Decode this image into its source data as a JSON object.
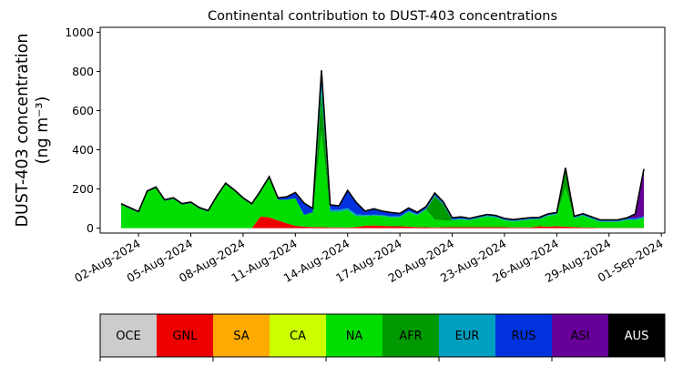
{
  "chart_data": {
    "type": "area",
    "stacked": true,
    "title": "Continental contribution to DUST-403 concentrations",
    "ylabel_line1": "DUST-403 concentration",
    "ylabel_line2": "(ng m⁻³)",
    "xlabel": "",
    "ylim": [
      -25,
      1025
    ],
    "xlim": [
      -1.2,
      31.2
    ],
    "yticks": [
      0,
      200,
      400,
      600,
      800,
      1000
    ],
    "yticklabels": [
      "0",
      "200",
      "400",
      "600",
      "800",
      "1000"
    ],
    "xticks": [
      1,
      4,
      7,
      10,
      13,
      16,
      19,
      22,
      25,
      28,
      31
    ],
    "xticklabels": [
      "02-Aug-2024",
      "05-Aug-2024",
      "08-Aug-2024",
      "11-Aug-2024",
      "14-Aug-2024",
      "17-Aug-2024",
      "20-Aug-2024",
      "23-Aug-2024",
      "26-Aug-2024",
      "29-Aug-2024",
      "01-Sep-2024"
    ],
    "x": [
      0.0,
      0.5,
      1.0,
      1.5,
      2.0,
      2.5,
      3.0,
      3.5,
      4.0,
      4.5,
      5.0,
      5.5,
      6.0,
      6.5,
      7.0,
      7.5,
      8.0,
      8.5,
      9.0,
      9.5,
      10.0,
      10.5,
      11.0,
      11.5,
      12.0,
      12.5,
      13.0,
      13.5,
      14.0,
      14.5,
      15.0,
      15.5,
      16.0,
      16.5,
      17.0,
      17.5,
      18.0,
      18.5,
      19.0,
      19.5,
      20.0,
      20.5,
      21.0,
      21.5,
      22.0,
      22.5,
      23.0,
      23.5,
      24.0,
      24.5,
      25.0,
      25.5,
      26.0,
      26.5,
      27.0,
      27.5,
      28.0,
      28.5,
      29.0,
      29.5,
      30.0
    ],
    "x_dates": [
      "01-Aug-2024 00:00",
      "01-Aug-2024 12:00",
      "02-Aug-2024 00:00",
      "02-Aug-2024 12:00",
      "03-Aug-2024 00:00",
      "03-Aug-2024 12:00",
      "04-Aug-2024 00:00",
      "04-Aug-2024 12:00",
      "05-Aug-2024 00:00",
      "05-Aug-2024 12:00",
      "06-Aug-2024 00:00",
      "06-Aug-2024 12:00",
      "07-Aug-2024 00:00",
      "07-Aug-2024 12:00",
      "08-Aug-2024 00:00",
      "08-Aug-2024 12:00",
      "09-Aug-2024 00:00",
      "09-Aug-2024 12:00",
      "10-Aug-2024 00:00",
      "10-Aug-2024 12:00",
      "11-Aug-2024 00:00",
      "11-Aug-2024 12:00",
      "12-Aug-2024 00:00",
      "12-Aug-2024 12:00",
      "13-Aug-2024 00:00",
      "13-Aug-2024 12:00",
      "14-Aug-2024 00:00",
      "14-Aug-2024 12:00",
      "15-Aug-2024 00:00",
      "15-Aug-2024 12:00",
      "16-Aug-2024 00:00",
      "16-Aug-2024 12:00",
      "17-Aug-2024 00:00",
      "17-Aug-2024 12:00",
      "18-Aug-2024 00:00",
      "18-Aug-2024 12:00",
      "19-Aug-2024 00:00",
      "19-Aug-2024 12:00",
      "20-Aug-2024 00:00",
      "20-Aug-2024 12:00",
      "21-Aug-2024 00:00",
      "21-Aug-2024 12:00",
      "22-Aug-2024 00:00",
      "22-Aug-2024 12:00",
      "23-Aug-2024 00:00",
      "23-Aug-2024 12:00",
      "24-Aug-2024 00:00",
      "24-Aug-2024 12:00",
      "25-Aug-2024 00:00",
      "25-Aug-2024 12:00",
      "26-Aug-2024 00:00",
      "26-Aug-2024 12:00",
      "27-Aug-2024 00:00",
      "27-Aug-2024 12:00",
      "28-Aug-2024 00:00",
      "28-Aug-2024 12:00",
      "29-Aug-2024 00:00",
      "29-Aug-2024 12:00",
      "30-Aug-2024 00:00",
      "30-Aug-2024 12:00",
      "31-Aug-2024 00:00"
    ],
    "series": [
      {
        "name": "OCE",
        "color": "#cccccc",
        "values": [
          0,
          0,
          0,
          0,
          0,
          0,
          0,
          0,
          0,
          0,
          0,
          0,
          0,
          0,
          0,
          0,
          0,
          0,
          0,
          0,
          0,
          0,
          0,
          0,
          0,
          0,
          0,
          0,
          0,
          0,
          0,
          0,
          0,
          0,
          0,
          0,
          0,
          0,
          0,
          0,
          0,
          0,
          0,
          0,
          0,
          0,
          0,
          0,
          0,
          0,
          0,
          0,
          0,
          0,
          0,
          0,
          0,
          0,
          0,
          0,
          0
        ]
      },
      {
        "name": "GNL",
        "color": "#ee0000",
        "values": [
          0,
          0,
          0,
          0,
          0,
          0,
          0,
          0,
          0,
          0,
          0,
          0,
          0,
          0,
          0,
          0,
          60,
          55,
          40,
          25,
          12,
          8,
          6,
          6,
          4,
          4,
          3,
          6,
          12,
          14,
          12,
          10,
          10,
          8,
          6,
          5,
          4,
          5,
          5,
          5,
          5,
          5,
          5,
          5,
          5,
          4,
          4,
          4,
          10,
          8,
          10,
          8,
          6,
          4,
          3,
          2,
          2,
          2,
          2,
          2,
          2
        ]
      },
      {
        "name": "SA",
        "color": "#ffaa00",
        "values": [
          0,
          0,
          0,
          0,
          0,
          0,
          0,
          0,
          0,
          0,
          0,
          0,
          0,
          0,
          0,
          0,
          0,
          0,
          0,
          0,
          0,
          0,
          0,
          0,
          0,
          0,
          0,
          0,
          0,
          0,
          0,
          0,
          0,
          0,
          0,
          0,
          0,
          0,
          0,
          0,
          0,
          0,
          0,
          0,
          0,
          0,
          0,
          0,
          0,
          0,
          0,
          0,
          0,
          0,
          0,
          0,
          0,
          0,
          0,
          0,
          0
        ]
      },
      {
        "name": "CA",
        "color": "#ccff00",
        "values": [
          0,
          0,
          0,
          0,
          0,
          0,
          0,
          0,
          0,
          0,
          0,
          0,
          0,
          0,
          0,
          0,
          0,
          0,
          0,
          0,
          0,
          0,
          0,
          0,
          0,
          0,
          0,
          0,
          0,
          0,
          0,
          0,
          0,
          0,
          0,
          0,
          0,
          0,
          0,
          0,
          0,
          0,
          0,
          0,
          0,
          0,
          0,
          0,
          0,
          0,
          0,
          0,
          0,
          0,
          0,
          0,
          0,
          0,
          0,
          0,
          0
        ]
      },
      {
        "name": "NA",
        "color": "#00dd00",
        "values": [
          120,
          100,
          80,
          185,
          205,
          140,
          150,
          120,
          128,
          100,
          85,
          160,
          225,
          190,
          150,
          120,
          125,
          200,
          105,
          120,
          140,
          60,
          75,
          490,
          80,
          80,
          90,
          55,
          50,
          50,
          50,
          45,
          45,
          75,
          60,
          90,
          40,
          35,
          35,
          40,
          35,
          45,
          55,
          50,
          35,
          30,
          35,
          40,
          35,
          55,
          60,
          200,
          45,
          60,
          45,
          30,
          30,
          30,
          40,
          40,
          50
        ]
      },
      {
        "name": "AFR",
        "color": "#009900",
        "values": [
          0,
          0,
          0,
          0,
          0,
          0,
          0,
          0,
          0,
          0,
          0,
          0,
          0,
          0,
          0,
          0,
          0,
          0,
          0,
          0,
          0,
          0,
          0,
          200,
          0,
          0,
          0,
          0,
          0,
          0,
          0,
          0,
          0,
          0,
          0,
          0,
          120,
          80,
          0,
          0,
          0,
          0,
          0,
          0,
          0,
          0,
          0,
          0,
          0,
          0,
          0,
          90,
          0,
          0,
          0,
          0,
          0,
          0,
          0,
          0,
          0
        ]
      },
      {
        "name": "EUR",
        "color": "#00a0c0",
        "values": [
          0,
          0,
          0,
          0,
          0,
          0,
          0,
          0,
          0,
          0,
          0,
          0,
          0,
          0,
          0,
          0,
          0,
          0,
          0,
          0,
          0,
          0,
          0,
          80,
          10,
          10,
          10,
          10,
          5,
          5,
          5,
          5,
          5,
          5,
          5,
          5,
          5,
          5,
          5,
          5,
          5,
          5,
          5,
          5,
          5,
          5,
          5,
          5,
          5,
          5,
          5,
          5,
          5,
          5,
          5,
          5,
          5,
          5,
          5,
          5,
          5
        ]
      },
      {
        "name": "RUS",
        "color": "#0033dd",
        "values": [
          5,
          5,
          5,
          5,
          5,
          5,
          5,
          5,
          5,
          5,
          5,
          5,
          5,
          5,
          5,
          5,
          5,
          8,
          10,
          15,
          30,
          60,
          20,
          30,
          25,
          20,
          90,
          60,
          20,
          30,
          20,
          20,
          15,
          15,
          10,
          10,
          10,
          8,
          8,
          8,
          5,
          5,
          5,
          5,
          5,
          5,
          5,
          5,
          5,
          5,
          5,
          5,
          5,
          5,
          5,
          5,
          5,
          5,
          5,
          5,
          5
        ]
      },
      {
        "name": "ASI",
        "color": "#660099",
        "values": [
          0,
          0,
          0,
          0,
          0,
          0,
          0,
          0,
          0,
          0,
          0,
          0,
          0,
          0,
          0,
          0,
          0,
          0,
          0,
          0,
          0,
          0,
          0,
          0,
          0,
          0,
          0,
          0,
          0,
          0,
          0,
          0,
          0,
          0,
          0,
          0,
          0,
          0,
          0,
          0,
          0,
          0,
          0,
          0,
          0,
          0,
          0,
          0,
          0,
          0,
          0,
          0,
          0,
          0,
          0,
          0,
          0,
          0,
          0,
          20,
          240
        ]
      },
      {
        "name": "AUS",
        "color": "#000000",
        "values": [
          0,
          0,
          0,
          0,
          0,
          0,
          0,
          0,
          0,
          0,
          0,
          0,
          0,
          0,
          0,
          0,
          0,
          0,
          0,
          0,
          0,
          0,
          0,
          0,
          0,
          0,
          0,
          0,
          0,
          0,
          0,
          0,
          0,
          0,
          0,
          0,
          0,
          0,
          0,
          0,
          0,
          0,
          0,
          0,
          0,
          0,
          0,
          0,
          0,
          0,
          0,
          0,
          0,
          0,
          0,
          0,
          0,
          0,
          0,
          0,
          0
        ]
      }
    ],
    "legend": {
      "placement": "bottom",
      "items": [
        {
          "label": "OCE",
          "color": "#cccccc",
          "text_color": "#000000"
        },
        {
          "label": "GNL",
          "color": "#ee0000",
          "text_color": "#000000"
        },
        {
          "label": "SA",
          "color": "#ffaa00",
          "text_color": "#000000"
        },
        {
          "label": "CA",
          "color": "#ccff00",
          "text_color": "#000000"
        },
        {
          "label": "NA",
          "color": "#00dd00",
          "text_color": "#000000"
        },
        {
          "label": "AFR",
          "color": "#009900",
          "text_color": "#000000"
        },
        {
          "label": "EUR",
          "color": "#00a0c0",
          "text_color": "#000000"
        },
        {
          "label": "RUS",
          "color": "#0033dd",
          "text_color": "#000000"
        },
        {
          "label": "ASI",
          "color": "#660099",
          "text_color": "#000000"
        },
        {
          "label": "AUS",
          "color": "#000000",
          "text_color": "#ffffff"
        }
      ]
    },
    "grid": false
  }
}
